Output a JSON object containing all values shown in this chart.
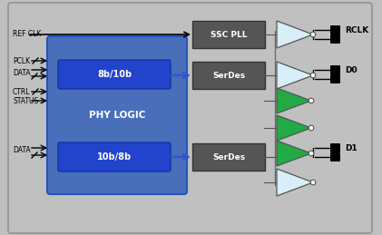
{
  "bg_outer": "#c0c0c0",
  "bg_inner": "#b8b8b8",
  "phy_logic_bg": "#4a6fba",
  "phy_logic_inner_bg": "#2244cc",
  "serdes_ssc_bg": "#555555",
  "buf_light": "#d8eef8",
  "buf_green": "#22aa44",
  "blue_arrow": "#3355cc",
  "labels_left": [
    "REF CLK",
    "PCLK",
    "DATA",
    "CTRL",
    "STATUS",
    "DATA"
  ],
  "labels_right": [
    "RCLK",
    "D0",
    "D1"
  ]
}
